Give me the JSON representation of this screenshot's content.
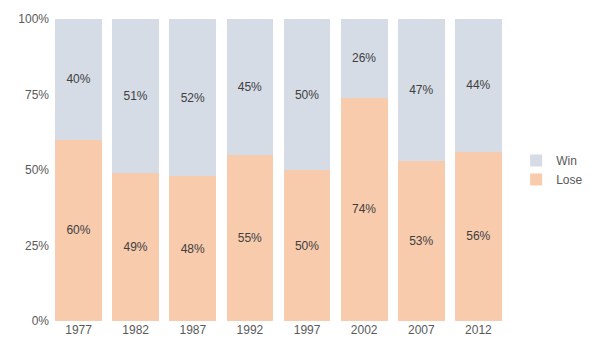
{
  "chart_data": {
    "type": "bar",
    "stacked": true,
    "categories": [
      "1977",
      "1982",
      "1987",
      "1992",
      "1997",
      "2002",
      "2007",
      "2012"
    ],
    "series": [
      {
        "name": "Lose",
        "color": "#f8cbad",
        "values": [
          60,
          49,
          48,
          55,
          50,
          74,
          53,
          56
        ],
        "value_labels": [
          "60%",
          "49%",
          "48%",
          "55%",
          "50%",
          "74%",
          "53%",
          "56%"
        ]
      },
      {
        "name": "Win",
        "color": "#d6dce5",
        "values": [
          40,
          51,
          52,
          45,
          50,
          26,
          47,
          44
        ],
        "value_labels": [
          "40%",
          "51%",
          "52%",
          "45%",
          "50%",
          "26%",
          "47%",
          "44%"
        ]
      }
    ],
    "ylim": [
      0,
      100
    ],
    "yticks": [
      {
        "value": 0,
        "label": "0%"
      },
      {
        "value": 25,
        "label": "25%"
      },
      {
        "value": 50,
        "label": "50%"
      },
      {
        "value": 75,
        "label": "75%"
      },
      {
        "value": 100,
        "label": "100%"
      }
    ],
    "grid": false,
    "legend": "right",
    "data_labels": true
  }
}
